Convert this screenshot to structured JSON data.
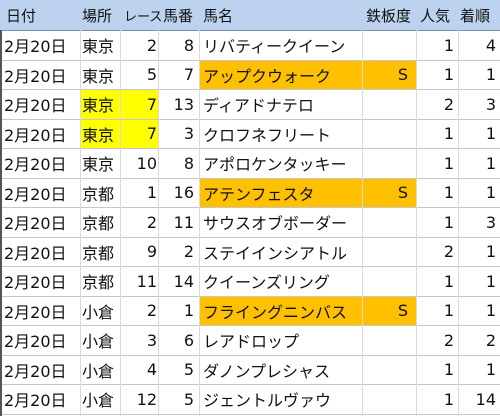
{
  "colors": {
    "header_bg": "#bcd2ee",
    "highlight_orange": "#ffc000",
    "highlight_yellow": "#ffff00"
  },
  "header": {
    "date": "日付",
    "place": "場所",
    "race": "レース",
    "horse_num": "馬番",
    "horse_name": "馬名",
    "iron": "鉄板度",
    "popularity": "人気",
    "finish": "着順"
  },
  "rows": [
    {
      "date": "2月20日",
      "place": "東京",
      "race": "2",
      "num": "8",
      "name": "リバティークイーン",
      "iron": "",
      "pop": "1",
      "fin": "4",
      "name_hl": "",
      "place_hl": ""
    },
    {
      "date": "2月20日",
      "place": "東京",
      "race": "5",
      "num": "7",
      "name": "アップクウォーク",
      "iron": "S",
      "pop": "1",
      "fin": "1",
      "name_hl": "#ffc000",
      "place_hl": ""
    },
    {
      "date": "2月20日",
      "place": "東京",
      "race": "7",
      "num": "13",
      "name": "ディアドナテロ",
      "iron": "",
      "pop": "2",
      "fin": "3",
      "name_hl": "",
      "place_hl": "#ffff00"
    },
    {
      "date": "2月20日",
      "place": "東京",
      "race": "7",
      "num": "3",
      "name": "クロフネフリート",
      "iron": "",
      "pop": "1",
      "fin": "1",
      "name_hl": "",
      "place_hl": "#ffff00"
    },
    {
      "date": "2月20日",
      "place": "東京",
      "race": "10",
      "num": "8",
      "name": "アポロケンタッキー",
      "iron": "",
      "pop": "1",
      "fin": "1",
      "name_hl": "",
      "place_hl": ""
    },
    {
      "date": "2月20日",
      "place": "京都",
      "race": "1",
      "num": "16",
      "name": "アテンフェスタ",
      "iron": "S",
      "pop": "1",
      "fin": "1",
      "name_hl": "#ffc000",
      "place_hl": ""
    },
    {
      "date": "2月20日",
      "place": "京都",
      "race": "2",
      "num": "11",
      "name": "サウスオブボーダー",
      "iron": "",
      "pop": "1",
      "fin": "3",
      "name_hl": "",
      "place_hl": ""
    },
    {
      "date": "2月20日",
      "place": "京都",
      "race": "9",
      "num": "2",
      "name": "ステイインシアトル",
      "iron": "",
      "pop": "2",
      "fin": "1",
      "name_hl": "",
      "place_hl": ""
    },
    {
      "date": "2月20日",
      "place": "京都",
      "race": "11",
      "num": "14",
      "name": "クイーンズリング",
      "iron": "",
      "pop": "1",
      "fin": "1",
      "name_hl": "",
      "place_hl": ""
    },
    {
      "date": "2月20日",
      "place": "小倉",
      "race": "2",
      "num": "1",
      "name": "フライングニンバス",
      "iron": "S",
      "pop": "1",
      "fin": "1",
      "name_hl": "#ffc000",
      "place_hl": ""
    },
    {
      "date": "2月20日",
      "place": "小倉",
      "race": "3",
      "num": "6",
      "name": "レアドロップ",
      "iron": "",
      "pop": "2",
      "fin": "2",
      "name_hl": "",
      "place_hl": ""
    },
    {
      "date": "2月20日",
      "place": "小倉",
      "race": "4",
      "num": "5",
      "name": "ダノンプレシャス",
      "iron": "",
      "pop": "1",
      "fin": "1",
      "name_hl": "",
      "place_hl": ""
    },
    {
      "date": "2月20日",
      "place": "小倉",
      "race": "12",
      "num": "5",
      "name": "ジェントルヴァウ",
      "iron": "",
      "pop": "1",
      "fin": "14",
      "name_hl": "",
      "place_hl": ""
    }
  ]
}
